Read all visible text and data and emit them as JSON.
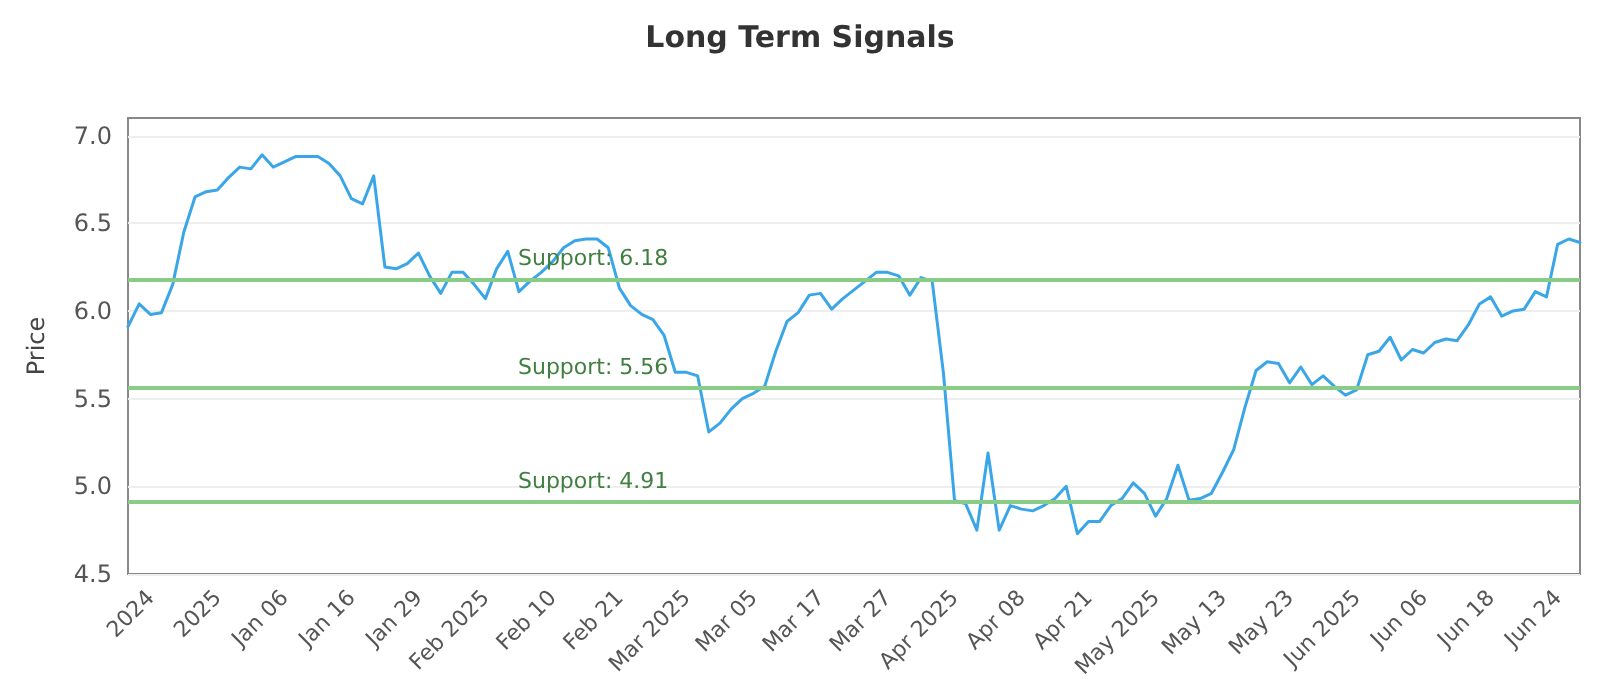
{
  "chart_data": {
    "type": "line",
    "title": "Long Term Signals",
    "ylabel": "Price",
    "categories": [
      null,
      null,
      "2024",
      null,
      null,
      null,
      null,
      null,
      "2025",
      null,
      null,
      null,
      null,
      null,
      "Jan 06",
      null,
      null,
      null,
      null,
      null,
      "Jan 16",
      null,
      null,
      null,
      null,
      null,
      "Jan 29",
      null,
      null,
      null,
      null,
      null,
      "Feb 2025",
      null,
      null,
      null,
      null,
      null,
      "Feb 10",
      null,
      null,
      null,
      null,
      null,
      "Feb 21",
      null,
      null,
      null,
      null,
      null,
      "Mar 2025",
      null,
      null,
      null,
      null,
      null,
      "Mar 05",
      null,
      null,
      null,
      null,
      null,
      "Mar 17",
      null,
      null,
      null,
      null,
      null,
      "Mar 27",
      null,
      null,
      null,
      null,
      null,
      "Apr 2025",
      null,
      null,
      null,
      null,
      null,
      "Apr 08",
      null,
      null,
      null,
      null,
      null,
      "Apr 21",
      null,
      null,
      null,
      null,
      null,
      "May 2025",
      null,
      null,
      null,
      null,
      null,
      "May 13",
      null,
      null,
      null,
      null,
      null,
      "May 23",
      null,
      null,
      null,
      null,
      null,
      "Jun 2025",
      null,
      null,
      null,
      null,
      null,
      "Jun 06",
      null,
      null,
      null,
      null,
      null,
      "Jun 18",
      null,
      null,
      null,
      null,
      null,
      "Jun 24",
      null,
      null
    ],
    "series": [
      {
        "color": "#3aa6e8",
        "values": [
          5.91,
          6.04,
          5.98,
          5.99,
          6.15,
          6.45,
          6.65,
          6.68,
          6.69,
          6.76,
          6.82,
          6.81,
          6.89,
          6.82,
          6.85,
          6.88,
          6.88,
          6.88,
          6.84,
          6.77,
          6.64,
          6.61,
          6.77,
          6.25,
          6.24,
          6.27,
          6.33,
          6.2,
          6.1,
          6.22,
          6.22,
          6.15,
          6.07,
          6.24,
          6.34,
          6.11,
          6.17,
          6.22,
          6.28,
          6.36,
          6.4,
          6.41,
          6.41,
          6.36,
          6.13,
          6.03,
          5.98,
          5.95,
          5.86,
          5.65,
          5.65,
          5.63,
          5.31,
          5.36,
          5.44,
          5.5,
          5.53,
          5.57,
          5.77,
          5.94,
          5.99,
          6.09,
          6.1,
          6.01,
          6.07,
          6.12,
          6.17,
          6.22,
          6.22,
          6.2,
          6.09,
          6.19,
          6.17,
          5.65,
          4.92,
          4.9,
          4.75,
          5.19,
          4.75,
          4.89,
          4.87,
          4.86,
          4.89,
          4.93,
          5.0,
          4.73,
          4.8,
          4.8,
          4.89,
          4.93,
          5.02,
          4.96,
          4.83,
          4.93,
          5.12,
          4.92,
          4.93,
          4.96,
          5.08,
          5.21,
          5.45,
          5.66,
          5.71,
          5.7,
          5.59,
          5.68,
          5.58,
          5.63,
          5.57,
          5.52,
          5.55,
          5.75,
          5.77,
          5.85,
          5.72,
          5.78,
          5.76,
          5.82,
          5.84,
          5.83,
          5.92,
          6.04,
          6.08,
          5.97,
          6.0,
          6.01,
          6.11,
          6.08,
          6.38,
          6.41,
          6.39
        ]
      }
    ],
    "ylim": [
      4.5,
      7.1
    ],
    "yticks": [
      4.5,
      {
        "value": 5,
        "label": "5.0"
      },
      5.5,
      {
        "value": 6,
        "label": "6.0"
      },
      6.5,
      {
        "value": 7,
        "label": "7.0"
      }
    ],
    "grid": "y",
    "marker": "none",
    "line_style": "solid",
    "ref_lines": [
      {
        "axis": "y",
        "value": 6.18,
        "label": "Support: 6.18",
        "color": "#88cc88"
      },
      {
        "axis": "y",
        "value": 5.56,
        "label": "Support: 5.56",
        "color": "#88cc88"
      },
      {
        "axis": "y",
        "value": 4.91,
        "label": "Support: 4.91",
        "color": "#88cc88"
      }
    ]
  }
}
